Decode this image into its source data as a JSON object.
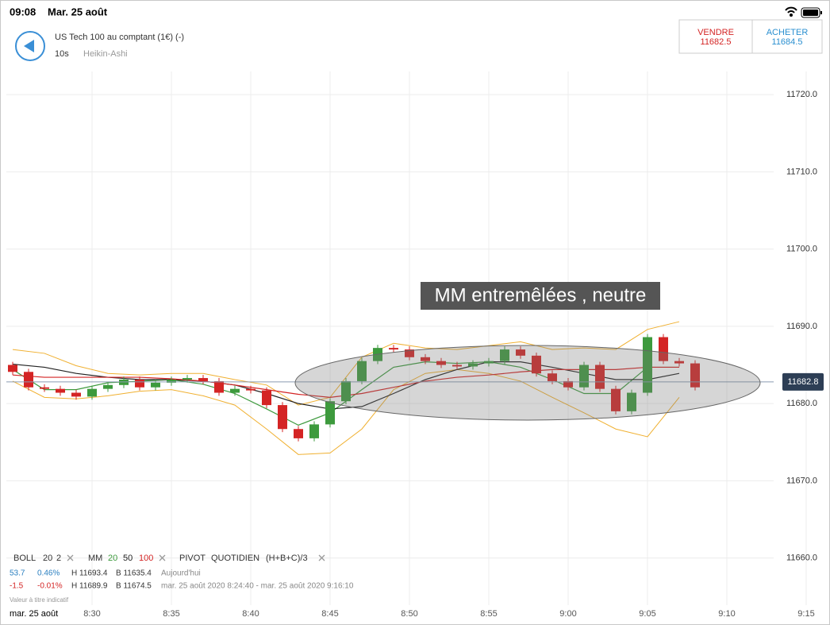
{
  "status_bar": {
    "time": "09:08",
    "date": "Mar. 25 août"
  },
  "header": {
    "instrument": "US Tech 100 au comptant (1€) (-)",
    "interval": "10s",
    "chart_style": "Heikin-Ashi"
  },
  "quotes": {
    "sell_label": "VENDRE",
    "sell_price": "11682.5",
    "buy_label": "ACHETER",
    "buy_price": "11684.5"
  },
  "chart_data": {
    "type": "candlestick",
    "annotation": "MM entremêlées , neutre",
    "xlim": [
      504.6,
      552.95
    ],
    "ylim": [
      11654.1,
      11723
    ],
    "grid": true,
    "xticks": [
      {
        "value": 510,
        "label": "8:30"
      },
      {
        "value": 515,
        "label": "8:35"
      },
      {
        "value": 520,
        "label": "8:40"
      },
      {
        "value": 525,
        "label": "8:45"
      },
      {
        "value": 530,
        "label": "8:50"
      },
      {
        "value": 535,
        "label": "8:55"
      },
      {
        "value": 540,
        "label": "9:00"
      },
      {
        "value": 545,
        "label": "9:05"
      },
      {
        "value": 550,
        "label": "9:10"
      },
      {
        "value": 555,
        "label": "9:15"
      }
    ],
    "yticks": [
      {
        "value": 11660,
        "label": "11660.0"
      },
      {
        "value": 11670,
        "label": "11670.0"
      },
      {
        "value": 11680,
        "label": "11680.0"
      },
      {
        "value": 11690,
        "label": "11690.0"
      },
      {
        "value": 11700,
        "label": "11700.0"
      },
      {
        "value": 11710,
        "label": "11710.0"
      },
      {
        "value": 11720,
        "label": "11720.0"
      }
    ],
    "x_date_label": "mar. 25 août",
    "last_price": 11682.8,
    "up_color": "#3d9a3d",
    "down_color": "#d42424",
    "candles": {
      "x": [
        505,
        506,
        507,
        508,
        509,
        510,
        511,
        512,
        513,
        514,
        515,
        516,
        517,
        518,
        519,
        520,
        521,
        522,
        523,
        524,
        525,
        526,
        527,
        528,
        529,
        530,
        531,
        532,
        533,
        534,
        535,
        536,
        537,
        538,
        539,
        540,
        541,
        542,
        543,
        544,
        545,
        546,
        547,
        548
      ],
      "open": [
        11685.0,
        11684.1,
        11682.1,
        11681.9,
        11681.4,
        11680.9,
        11681.9,
        11682.4,
        11683.1,
        11682.1,
        11682.7,
        11683.1,
        11683.3,
        11682.9,
        11681.4,
        11681.9,
        11681.7,
        11679.8,
        11676.7,
        11675.5,
        11677.3,
        11680.3,
        11682.9,
        11685.5,
        11687.2,
        11687.0,
        11686.0,
        11685.5,
        11685.0,
        11684.8,
        11685.2,
        11685.5,
        11687.0,
        11686.2,
        11683.9,
        11682.9,
        11682.1,
        11685.0,
        11681.9,
        11679.0,
        11681.4,
        11688.6,
        11685.5,
        11685.2
      ],
      "high": [
        11685.4,
        11684.5,
        11682.5,
        11682.3,
        11681.8,
        11682.3,
        11682.8,
        11683.5,
        11683.5,
        11683.1,
        11683.5,
        11683.7,
        11683.7,
        11683.3,
        11682.3,
        11682.3,
        11682.1,
        11680.2,
        11677.1,
        11677.7,
        11680.7,
        11683.3,
        11685.9,
        11687.6,
        11687.6,
        11687.4,
        11686.4,
        11685.9,
        11685.4,
        11685.6,
        11685.9,
        11687.4,
        11687.4,
        11686.6,
        11684.3,
        11683.3,
        11685.4,
        11685.4,
        11682.3,
        11681.8,
        11689.0,
        11689.0,
        11685.9,
        11685.6
      ],
      "low": [
        11683.7,
        11681.7,
        11681.5,
        11681.0,
        11680.5,
        11680.5,
        11681.5,
        11682.0,
        11681.7,
        11681.7,
        11682.3,
        11682.7,
        11682.5,
        11681.0,
        11681.0,
        11681.3,
        11679.4,
        11676.3,
        11675.1,
        11675.1,
        11676.9,
        11679.9,
        11682.5,
        11685.1,
        11686.6,
        11685.6,
        11685.1,
        11684.6,
        11684.4,
        11684.4,
        11684.8,
        11685.1,
        11685.8,
        11683.5,
        11682.5,
        11681.7,
        11681.7,
        11681.5,
        11678.6,
        11678.6,
        11681.0,
        11685.1,
        11684.8,
        11681.7
      ],
      "close": [
        11684.1,
        11682.1,
        11681.9,
        11681.4,
        11680.9,
        11681.9,
        11682.4,
        11683.1,
        11682.1,
        11682.7,
        11683.1,
        11683.3,
        11682.9,
        11681.4,
        11681.9,
        11681.7,
        11679.8,
        11676.7,
        11675.5,
        11677.3,
        11680.3,
        11682.9,
        11685.5,
        11687.2,
        11687.0,
        11686.0,
        11685.5,
        11685.0,
        11684.8,
        11685.2,
        11685.5,
        11687.0,
        11686.2,
        11683.9,
        11682.9,
        11682.1,
        11685.0,
        11681.9,
        11679.0,
        11681.4,
        11688.6,
        11685.5,
        11685.2,
        11682.1
      ]
    },
    "line_x": [
      505,
      507,
      509,
      511,
      513,
      515,
      517,
      519,
      521,
      523,
      525,
      527,
      529,
      531,
      533,
      535,
      537,
      539,
      541,
      543,
      545,
      547
    ],
    "bands": {
      "color": "#f0b030",
      "upper": [
        11687.0,
        11686.5,
        11684.9,
        11683.9,
        11683.7,
        11683.9,
        11683.9,
        11683.1,
        11682.4,
        11679.8,
        11680.8,
        11686.0,
        11687.8,
        11687.2,
        11687.0,
        11687.5,
        11688.0,
        11687.0,
        11687.2,
        11687.0,
        11689.6,
        11690.6
      ],
      "lower": [
        11682.9,
        11680.8,
        11680.6,
        11681.0,
        11681.6,
        11681.8,
        11681.0,
        11679.8,
        11676.7,
        11673.4,
        11673.6,
        11676.7,
        11681.8,
        11683.9,
        11684.4,
        11683.9,
        11682.9,
        11680.8,
        11678.8,
        11676.7,
        11675.7,
        11680.8
      ]
    },
    "series": [
      {
        "name": "20",
        "color": "#3d9a3d",
        "values": [
          11684.4,
          11681.8,
          11681.8,
          11682.7,
          11682.9,
          11683.1,
          11682.5,
          11681.3,
          11679.3,
          11677.2,
          11678.8,
          11681.8,
          11684.7,
          11685.4,
          11685.2,
          11685.4,
          11684.7,
          11683.1,
          11681.3,
          11681.3,
          11684.7,
          11684.7
        ]
      },
      {
        "name": "50",
        "color": "#222222",
        "values": [
          11685.1,
          11684.7,
          11683.9,
          11683.4,
          11683.1,
          11683.1,
          11682.9,
          11682.4,
          11681.3,
          11680.0,
          11679.3,
          11679.6,
          11681.3,
          11683.1,
          11684.4,
          11685.4,
          11685.4,
          11684.7,
          11683.9,
          11683.1,
          11683.1,
          11683.9
        ]
      },
      {
        "name": "100",
        "color": "#d42424",
        "values": [
          11683.7,
          11683.4,
          11683.4,
          11683.4,
          11683.4,
          11683.2,
          11682.9,
          11682.4,
          11681.8,
          11681.2,
          11680.8,
          11681.3,
          11682.1,
          11682.9,
          11683.4,
          11683.7,
          11684.1,
          11684.4,
          11684.4,
          11684.4,
          11684.7,
          11684.7
        ]
      }
    ],
    "indicators": {
      "boll": {
        "label": "BOLL",
        "period": "20",
        "deviation": "2"
      },
      "mm": {
        "label": "MM"
      },
      "pivot": {
        "label": "PIVOT",
        "period": "QUOTIDIEN",
        "formula": "(H+B+C)/3"
      }
    }
  },
  "info": {
    "row1": {
      "change": "53.7",
      "change_pct": "0.46%",
      "high": "H 11693.4",
      "low": "B 11635.4",
      "period": "Aujourd'hui"
    },
    "row2": {
      "change": "-1.5",
      "change_pct": "-0.01%",
      "high": "H 11689.9",
      "low": "B 11674.5",
      "period": "mar. 25 août 2020 8:24:40 - mar. 25 août 2020 9:16:10"
    },
    "note": "Valeur à titre indicatif"
  }
}
